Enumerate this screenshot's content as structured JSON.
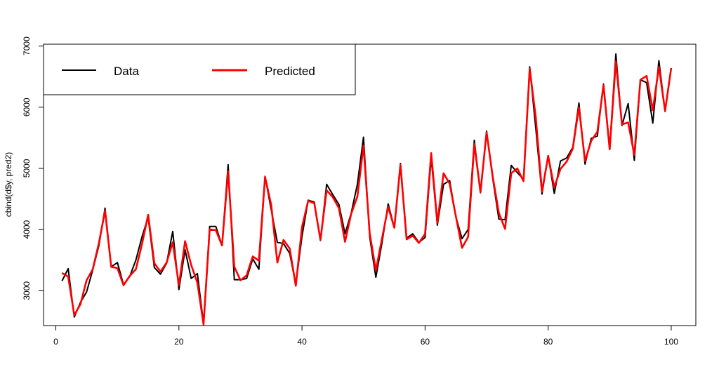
{
  "chart_data": {
    "type": "line",
    "xlabel": "",
    "ylabel": "cbind(d$y, pred2)",
    "xlim": [
      -2,
      104
    ],
    "ylim": [
      2430,
      7030
    ],
    "x_ticks": [
      0,
      20,
      40,
      60,
      80,
      100
    ],
    "y_ticks": [
      3000,
      4000,
      5000,
      6000,
      7000
    ],
    "x": [
      1,
      2,
      3,
      4,
      5,
      6,
      7,
      8,
      9,
      10,
      11,
      12,
      13,
      14,
      15,
      16,
      17,
      18,
      19,
      20,
      21,
      22,
      23,
      24,
      25,
      26,
      27,
      28,
      29,
      30,
      31,
      32,
      33,
      34,
      35,
      36,
      37,
      38,
      39,
      40,
      41,
      42,
      43,
      44,
      45,
      46,
      47,
      48,
      49,
      50,
      51,
      52,
      53,
      54,
      55,
      56,
      57,
      58,
      59,
      60,
      61,
      62,
      63,
      64,
      65,
      66,
      67,
      68,
      69,
      70,
      71,
      72,
      73,
      74,
      75,
      76,
      77,
      78,
      79,
      80,
      81,
      82,
      83,
      84,
      85,
      86,
      87,
      88,
      89,
      90,
      91,
      92,
      93,
      94,
      95,
      96,
      97,
      98,
      99,
      100
    ],
    "legend": {
      "placement": "top-left"
    },
    "series": [
      {
        "name": "Data",
        "color": "#000000",
        "values": [
          3160,
          3360,
          2570,
          2810,
          2980,
          3340,
          3740,
          4350,
          3390,
          3460,
          3100,
          3230,
          3500,
          3880,
          4200,
          3380,
          3270,
          3450,
          3970,
          3020,
          3670,
          3200,
          3280,
          2460,
          4050,
          4050,
          3740,
          5060,
          3180,
          3180,
          3200,
          3520,
          3350,
          4870,
          4320,
          3790,
          3770,
          3610,
          3100,
          3890,
          4480,
          4450,
          3820,
          4740,
          4570,
          4410,
          3930,
          4270,
          4740,
          5510,
          3880,
          3220,
          3780,
          4420,
          4030,
          5080,
          3860,
          3930,
          3790,
          3870,
          5170,
          4070,
          4740,
          4800,
          4210,
          3850,
          4000,
          5460,
          4600,
          5610,
          4830,
          4170,
          4160,
          5050,
          4930,
          4820,
          6660,
          5650,
          4580,
          5210,
          4590,
          5120,
          5170,
          5340,
          6070,
          5070,
          5490,
          5530,
          6380,
          5330,
          6870,
          5700,
          6060,
          5130,
          6450,
          6400,
          5740,
          6760,
          5930,
          6640
        ]
      },
      {
        "name": "Predicted",
        "color": "#ff0000",
        "values": [
          3290,
          3230,
          2600,
          2780,
          3170,
          3350,
          3780,
          4310,
          3390,
          3370,
          3090,
          3240,
          3350,
          3760,
          4240,
          3450,
          3310,
          3460,
          3790,
          3090,
          3810,
          3420,
          3130,
          2450,
          4000,
          3990,
          3740,
          4950,
          3390,
          3170,
          3250,
          3560,
          3490,
          4860,
          4400,
          3460,
          3830,
          3690,
          3080,
          4040,
          4470,
          4430,
          3830,
          4640,
          4530,
          4350,
          3800,
          4260,
          4540,
          5370,
          3940,
          3330,
          3850,
          4370,
          4030,
          5060,
          3840,
          3900,
          3780,
          3930,
          5250,
          4110,
          4920,
          4750,
          4220,
          3700,
          3880,
          5400,
          4610,
          5590,
          4860,
          4270,
          4010,
          4920,
          5000,
          4790,
          6630,
          5830,
          4620,
          5200,
          4690,
          4990,
          5110,
          5320,
          6000,
          5120,
          5450,
          5600,
          6360,
          5310,
          6750,
          5720,
          5750,
          5220,
          6450,
          6510,
          5950,
          6660,
          5940,
          6640
        ]
      }
    ]
  }
}
